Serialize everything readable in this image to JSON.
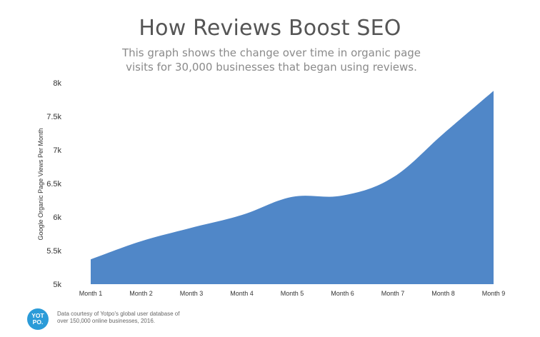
{
  "chart_data": {
    "type": "area",
    "title": "How Reviews Boost SEO",
    "subtitle": "This graph shows the change over time in organic page visits for 30,000 businesses that began using reviews.",
    "xlabel": "",
    "ylabel": "Google Organic Page Views Per Month",
    "categories": [
      "Month 1",
      "Month 2",
      "Month 3",
      "Month 4",
      "Month 5",
      "Month 6",
      "Month 7",
      "Month 8",
      "Month 9"
    ],
    "values": [
      5370,
      5640,
      5840,
      6030,
      6300,
      6320,
      6590,
      7240,
      7880
    ],
    "ylim": [
      5000,
      8000
    ],
    "yticks": [
      "5k",
      "5.5k",
      "6k",
      "6.5k",
      "7k",
      "7.5k",
      "8k"
    ],
    "grid": false,
    "color": "#5087c8"
  },
  "footer": {
    "logo_text": "YOT PO.",
    "credit_line1": "Data courtesy of Yotpo's global user database of",
    "credit_line2": "over 150,000 online businesses, 2016."
  }
}
